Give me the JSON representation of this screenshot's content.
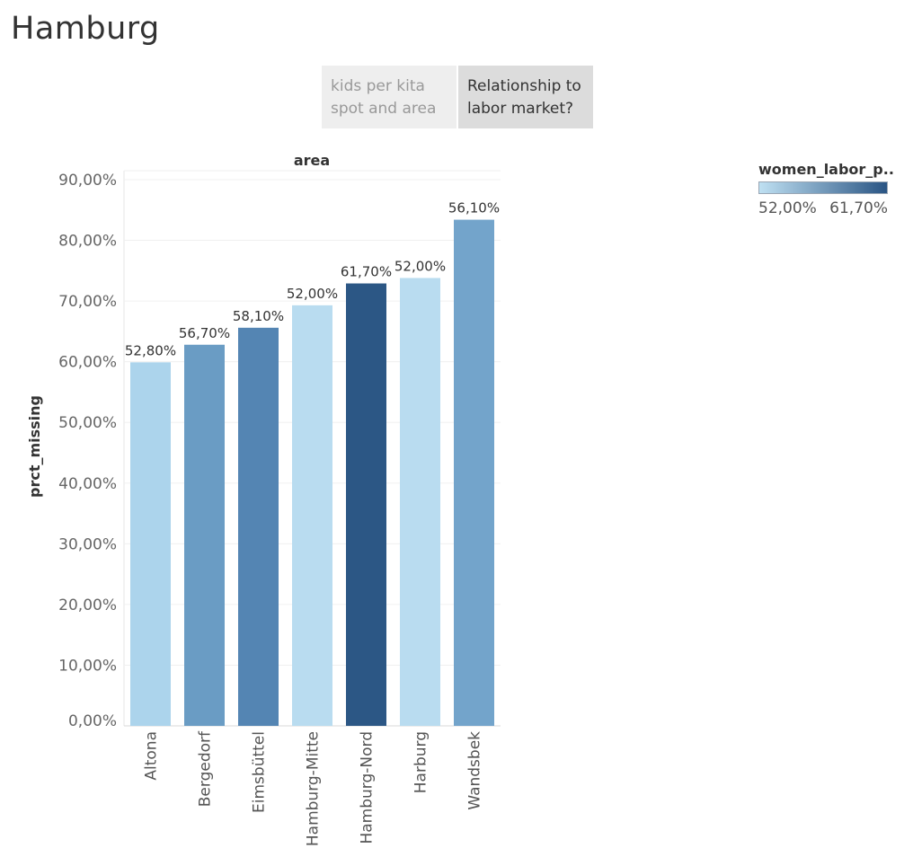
{
  "page": {
    "title": "Hamburg"
  },
  "tabs": [
    {
      "label": "kids per kita spot and area",
      "line1": "kids per kita",
      "line2": "spot and area",
      "active": false
    },
    {
      "label": "Relationship to labor market?",
      "line1": "Relationship to",
      "line2": "labor market?",
      "active": true
    }
  ],
  "legend": {
    "title": "women_labor_p..",
    "min_label": "52,00%",
    "max_label": "61,70%",
    "min": 52.0,
    "max": 61.7,
    "color_low": "#bfe0f2",
    "color_high": "#2a5584"
  },
  "chart_data": {
    "type": "bar",
    "header": "area",
    "ylabel": "prct_missing",
    "ylim": [
      0,
      90
    ],
    "yticks": [
      "0,00%",
      "10,00%",
      "20,00%",
      "30,00%",
      "40,00%",
      "50,00%",
      "60,00%",
      "70,00%",
      "80,00%",
      "90,00%"
    ],
    "categories": [
      "Altona",
      "Bergedorf",
      "Eimsbüttel",
      "Hamburg-Mitte",
      "Hamburg-Nord",
      "Harburg",
      "Wandsbek"
    ],
    "values": [
      59.9,
      62.8,
      65.6,
      69.3,
      72.9,
      73.8,
      83.4
    ],
    "color_values": [
      52.8,
      56.7,
      58.1,
      52.0,
      61.7,
      52.0,
      56.1
    ],
    "data_labels": [
      "52,80%",
      "56,70%",
      "58,10%",
      "52,00%",
      "61,70%",
      "52,00%",
      "56,10%"
    ],
    "bar_colors": [
      "#acd4ec",
      "#6a9cc4",
      "#5485b3",
      "#b9dcf0",
      "#2c5785",
      "#b9dcf0",
      "#73a4cb"
    ],
    "grid": true
  }
}
